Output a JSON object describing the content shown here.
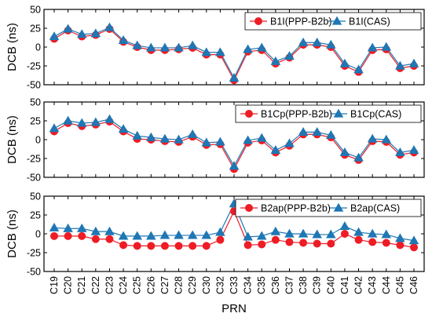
{
  "chart_data": [
    {
      "type": "line",
      "ylabel": "DCB (ns)",
      "ylim": [
        -50,
        50
      ],
      "yticks": [
        -50,
        -25,
        0,
        25,
        50
      ],
      "legend_position": "top-right",
      "series": [
        {
          "name": "B1I(PPP-B2b)",
          "color": "#ee1c25",
          "marker": "circle",
          "values": [
            11,
            22,
            14,
            16,
            24,
            7,
            0,
            -4,
            -4,
            -3,
            -1,
            -10,
            -10,
            -44,
            -6,
            -4,
            -22,
            -14,
            3,
            3,
            0,
            -25,
            -33,
            -4,
            -3,
            -28,
            -25
          ]
        },
        {
          "name": "B1I(CAS)",
          "color": "#1f77b4",
          "marker": "triangle",
          "values": [
            14,
            24,
            17,
            18,
            26,
            9,
            2,
            -1,
            -1,
            -1,
            2,
            -7,
            -7,
            -41,
            -3,
            -1,
            -19,
            -12,
            6,
            6,
            3,
            -22,
            -30,
            -1,
            0,
            -25,
            -22
          ]
        }
      ]
    },
    {
      "type": "line",
      "ylabel": "DCB (ns)",
      "ylim": [
        -50,
        50
      ],
      "yticks": [
        -50,
        -25,
        0,
        25,
        50
      ],
      "legend_position": "top-right",
      "series": [
        {
          "name": "B1Cp(PPP-B2b)",
          "color": "#ee1c25",
          "marker": "circle",
          "values": [
            11,
            22,
            18,
            20,
            24,
            11,
            1,
            0,
            -2,
            -3,
            4,
            -7,
            -6,
            -39,
            -4,
            -1,
            -17,
            -8,
            7,
            7,
            3,
            -20,
            -27,
            -2,
            -3,
            -20,
            -17
          ]
        },
        {
          "name": "B1Cp(CAS)",
          "color": "#1f77b4",
          "marker": "triangle",
          "values": [
            15,
            25,
            22,
            23,
            27,
            14,
            5,
            3,
            1,
            0,
            7,
            -4,
            -3,
            -35,
            -1,
            2,
            -14,
            -5,
            10,
            10,
            6,
            -17,
            -24,
            1,
            0,
            -17,
            -14
          ]
        }
      ]
    },
    {
      "type": "line",
      "xlabel": "PRN",
      "ylabel": "DCB (ns)",
      "ylim": [
        -50,
        50
      ],
      "yticks": [
        -50,
        -25,
        0,
        25,
        50
      ],
      "legend_position": "top-right",
      "series": [
        {
          "name": "B2ap(PPP-B2b)",
          "color": "#ee1c25",
          "marker": "circle",
          "values": [
            -3,
            -3,
            -3,
            -7,
            -7,
            -15,
            -16,
            -16,
            -16,
            -16,
            -16,
            -16,
            -8,
            30,
            -15,
            -14,
            -8,
            -11,
            -12,
            -13,
            -13,
            0,
            -8,
            -11,
            -12,
            -15,
            -18
          ]
        },
        {
          "name": "B2ap(CAS)",
          "color": "#1f77b4",
          "marker": "triangle",
          "values": [
            8,
            7,
            7,
            3,
            3,
            -3,
            -3,
            -3,
            -2,
            -2,
            -2,
            -2,
            2,
            40,
            -4,
            -3,
            3,
            0,
            0,
            -1,
            -1,
            10,
            2,
            0,
            -1,
            -6,
            -9
          ]
        }
      ]
    }
  ],
  "categories": [
    "C19",
    "C20",
    "C21",
    "C22",
    "C23",
    "C24",
    "C25",
    "C26",
    "C27",
    "C28",
    "C29",
    "C30",
    "C32",
    "C33",
    "C34",
    "C35",
    "C36",
    "C37",
    "C38",
    "C39",
    "C40",
    "C41",
    "C42",
    "C43",
    "C44",
    "C45",
    "C46"
  ]
}
